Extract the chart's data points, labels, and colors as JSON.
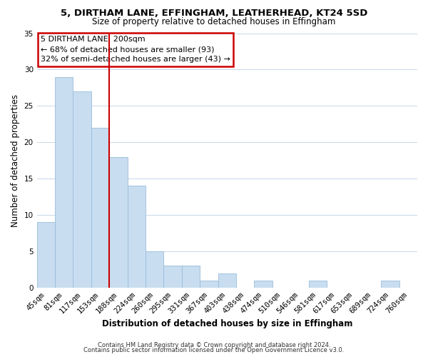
{
  "title1": "5, DIRTHAM LANE, EFFINGHAM, LEATHERHEAD, KT24 5SD",
  "title2": "Size of property relative to detached houses in Effingham",
  "xlabel": "Distribution of detached houses by size in Effingham",
  "ylabel": "Number of detached properties",
  "categories": [
    "45sqm",
    "81sqm",
    "117sqm",
    "153sqm",
    "188sqm",
    "224sqm",
    "260sqm",
    "295sqm",
    "331sqm",
    "367sqm",
    "403sqm",
    "438sqm",
    "474sqm",
    "510sqm",
    "546sqm",
    "581sqm",
    "617sqm",
    "653sqm",
    "689sqm",
    "724sqm",
    "760sqm"
  ],
  "values": [
    9,
    29,
    27,
    22,
    18,
    14,
    5,
    3,
    3,
    1,
    2,
    0,
    1,
    0,
    0,
    1,
    0,
    0,
    0,
    1,
    0
  ],
  "bar_color": "#c8ddf0",
  "bar_edge_color": "#9abdd8",
  "vline_x": 3.5,
  "annotation_title": "5 DIRTHAM LANE: 200sqm",
  "annotation_line1": "← 68% of detached houses are smaller (93)",
  "annotation_line2": "32% of semi-detached houses are larger (43) →",
  "annotation_box_color": "#ffffff",
  "annotation_box_edge": "#cc0000",
  "vline_color": "#cc0000",
  "ylim": [
    0,
    35
  ],
  "yticks": [
    0,
    5,
    10,
    15,
    20,
    25,
    30,
    35
  ],
  "footer1": "Contains HM Land Registry data © Crown copyright and database right 2024.",
  "footer2": "Contains public sector information licensed under the Open Government Licence v3.0.",
  "background_color": "#ffffff",
  "grid_color": "#c8d8e8",
  "title1_fontsize": 9.5,
  "title2_fontsize": 8.5,
  "axis_label_fontsize": 8.5,
  "tick_fontsize": 7.5,
  "annotation_fontsize": 8.0,
  "footer_fontsize": 6.0
}
